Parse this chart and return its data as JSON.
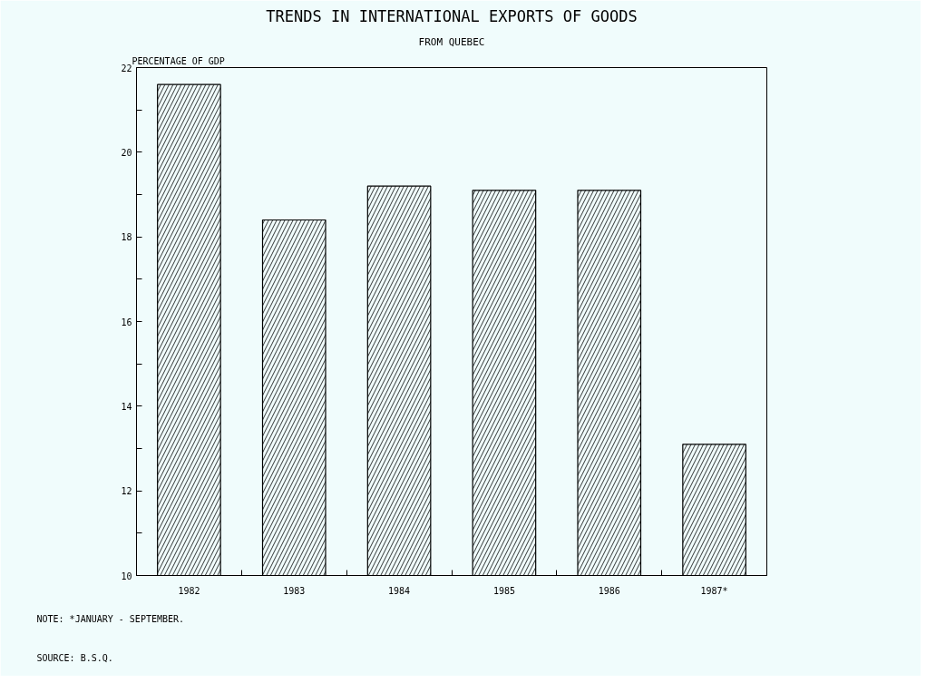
{
  "chart_data": {
    "type": "bar",
    "title": "TRENDS IN INTERNATIONAL EXPORTS OF GOODS",
    "subtitle": "FROM QUEBEC",
    "ylabel": "PERCENTAGE OF GDP",
    "categories": [
      "1982",
      "1983",
      "1984",
      "1985",
      "1986",
      "1987*"
    ],
    "series": [
      {
        "color": "#000000",
        "values": [
          21.6,
          18.4,
          19.2,
          19.1,
          19.1,
          13.1
        ]
      }
    ],
    "ylim": [
      10,
      22
    ],
    "yticks": [
      10,
      {
        "value": 11,
        "label": null
      },
      12,
      {
        "value": 13,
        "label": null
      },
      14,
      {
        "value": 15,
        "label": null
      },
      16,
      {
        "value": 17,
        "label": null
      },
      18,
      {
        "value": 19,
        "label": null
      },
      20,
      {
        "value": 21,
        "label": null
      },
      22
    ],
    "grid": false,
    "annotations": [
      "NOTE: *JANUARY - SEPTEMBER.",
      "SOURCE: B.S.Q."
    ]
  }
}
